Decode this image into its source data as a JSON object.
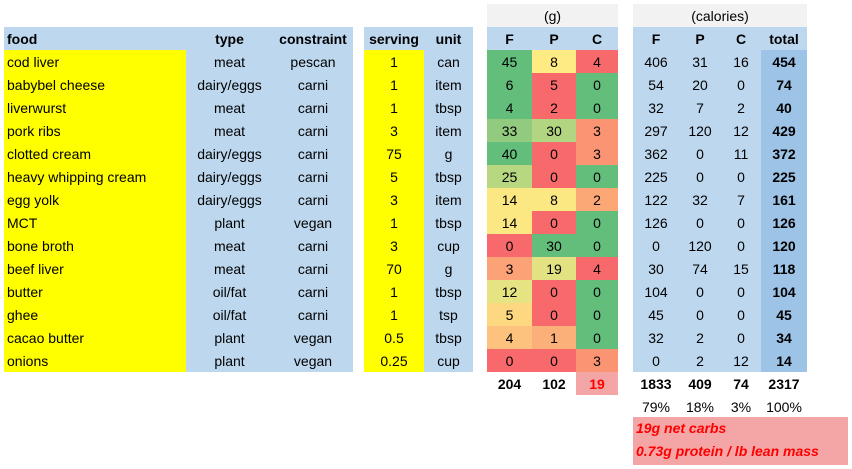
{
  "headers": {
    "food": "food",
    "type": "type",
    "constraint": "constraint",
    "serving": "serving",
    "unit": "unit",
    "grams_group": "(g)",
    "calories_group": "(calories)",
    "f": "F",
    "p": "P",
    "c": "C",
    "total": "total"
  },
  "rows": [
    {
      "food": "cod liver",
      "type": "meat",
      "constraint": "pescan",
      "serving": "1",
      "unit": "can",
      "g": [
        "45",
        "8",
        "4"
      ],
      "g_colors": [
        "#63be7b",
        "#ffeb84",
        "#f8696b"
      ],
      "cal": [
        "406",
        "31",
        "16"
      ],
      "total": "454"
    },
    {
      "food": "babybel cheese",
      "type": "dairy/eggs",
      "constraint": "carni",
      "serving": "1",
      "unit": "item",
      "g": [
        "6",
        "5",
        "0"
      ],
      "g_colors": [
        "#63be7b",
        "#f8696b",
        "#63be7b"
      ],
      "cal": [
        "54",
        "20",
        "0"
      ],
      "total": "74"
    },
    {
      "food": "liverwurst",
      "type": "meat",
      "constraint": "carni",
      "serving": "1",
      "unit": "tbsp",
      "g": [
        "4",
        "2",
        "0"
      ],
      "g_colors": [
        "#63be7b",
        "#f8696b",
        "#63be7b"
      ],
      "cal": [
        "32",
        "7",
        "2"
      ],
      "total": "40"
    },
    {
      "food": "pork ribs",
      "type": "meat",
      "constraint": "carni",
      "serving": "3",
      "unit": "item",
      "g": [
        "33",
        "30",
        "3"
      ],
      "g_colors": [
        "#92cb7f",
        "#b1d580",
        "#fa9473"
      ],
      "cal": [
        "297",
        "120",
        "12"
      ],
      "total": "429"
    },
    {
      "food": "clotted cream",
      "type": "dairy/eggs",
      "constraint": "carni",
      "serving": "75",
      "unit": "g",
      "g": [
        "40",
        "0",
        "3"
      ],
      "g_colors": [
        "#63be7b",
        "#f8696b",
        "#fa9473"
      ],
      "cal": [
        "362",
        "0",
        "11"
      ],
      "total": "372"
    },
    {
      "food": "heavy whipping cream",
      "type": "dairy/eggs",
      "constraint": "carni",
      "serving": "5",
      "unit": "tbsp",
      "g": [
        "25",
        "0",
        "0"
      ],
      "g_colors": [
        "#b7d780",
        "#f8696b",
        "#63be7b"
      ],
      "cal": [
        "225",
        "0",
        "0"
      ],
      "total": "225"
    },
    {
      "food": "egg yolk",
      "type": "dairy/eggs",
      "constraint": "carni",
      "serving": "3",
      "unit": "item",
      "g": [
        "14",
        "8",
        "2"
      ],
      "g_colors": [
        "#fce883",
        "#fce883",
        "#fba776"
      ],
      "cal": [
        "122",
        "32",
        "7"
      ],
      "total": "161"
    },
    {
      "food": "MCT",
      "type": "plant",
      "constraint": "vegan",
      "serving": "1",
      "unit": "tbsp",
      "g": [
        "14",
        "0",
        "0"
      ],
      "g_colors": [
        "#fce883",
        "#f8696b",
        "#63be7b"
      ],
      "cal": [
        "126",
        "0",
        "0"
      ],
      "total": "126"
    },
    {
      "food": "bone broth",
      "type": "meat",
      "constraint": "carni",
      "serving": "3",
      "unit": "cup",
      "g": [
        "0",
        "30",
        "0"
      ],
      "g_colors": [
        "#f8696b",
        "#63be7b",
        "#63be7b"
      ],
      "cal": [
        "0",
        "120",
        "0"
      ],
      "total": "120"
    },
    {
      "food": "beef liver",
      "type": "meat",
      "constraint": "carni",
      "serving": "70",
      "unit": "g",
      "g": [
        "3",
        "19",
        "4"
      ],
      "g_colors": [
        "#fba276",
        "#e2e282",
        "#f8696b"
      ],
      "cal": [
        "30",
        "74",
        "15"
      ],
      "total": "118"
    },
    {
      "food": "butter",
      "type": "oil/fat",
      "constraint": "carni",
      "serving": "1",
      "unit": "tbsp",
      "g": [
        "12",
        "0",
        "0"
      ],
      "g_colors": [
        "#e6e382",
        "#f8696b",
        "#63be7b"
      ],
      "cal": [
        "104",
        "0",
        "0"
      ],
      "total": "104"
    },
    {
      "food": "ghee",
      "type": "oil/fat",
      "constraint": "carni",
      "serving": "1",
      "unit": "tsp",
      "g": [
        "5",
        "0",
        "0"
      ],
      "g_colors": [
        "#fdd880",
        "#f8696b",
        "#63be7b"
      ],
      "cal": [
        "45",
        "0",
        "0"
      ],
      "total": "45"
    },
    {
      "food": "cacao butter",
      "type": "plant",
      "constraint": "vegan",
      "serving": "0.5",
      "unit": "tbsp",
      "g": [
        "4",
        "1",
        "0"
      ],
      "g_colors": [
        "#fdc27d",
        "#fbb07a",
        "#63be7b"
      ],
      "cal": [
        "32",
        "2",
        "0"
      ],
      "total": "34"
    },
    {
      "food": "onions",
      "type": "plant",
      "constraint": "vegan",
      "serving": "0.25",
      "unit": "cup",
      "g": [
        "0",
        "0",
        "3"
      ],
      "g_colors": [
        "#f8696b",
        "#f8696b",
        "#fa9473"
      ],
      "cal": [
        "0",
        "2",
        "12"
      ],
      "total": "14"
    }
  ],
  "totals": {
    "g": [
      "204",
      "102",
      "19"
    ],
    "cal": [
      "1833",
      "409",
      "74"
    ],
    "total": "2317"
  },
  "percents": [
    "79%",
    "18%",
    "3%",
    "100%"
  ],
  "notes": [
    "19g net carbs",
    "0.73g protein / lb lean mass"
  ]
}
